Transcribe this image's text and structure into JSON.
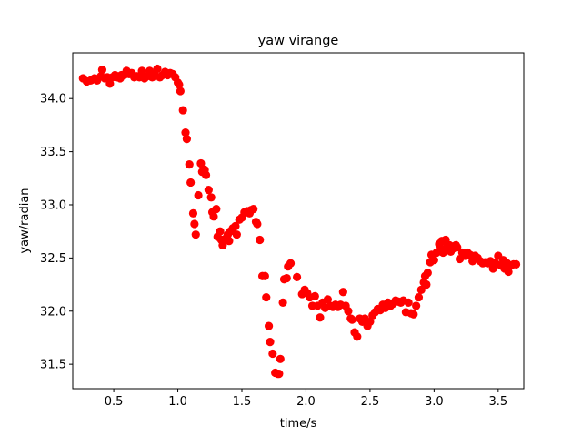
{
  "chart_data": {
    "type": "scatter",
    "title": "yaw virange",
    "xlabel": "time/s",
    "ylabel": "yaw/radian",
    "xlim": [
      0.18,
      3.7
    ],
    "ylim": [
      31.27,
      34.43
    ],
    "xticks": [
      0.5,
      1.0,
      1.5,
      2.0,
      2.5,
      3.0,
      3.5
    ],
    "xtick_labels": [
      "0.5",
      "1.0",
      "1.5",
      "2.0",
      "2.5",
      "3.0",
      "3.5"
    ],
    "yticks": [
      31.5,
      32.0,
      32.5,
      33.0,
      33.5,
      34.0
    ],
    "ytick_labels": [
      "31.5",
      "32.0",
      "32.5",
      "33.0",
      "33.5",
      "34.0"
    ],
    "grid": false,
    "marker_color": "#ff0000",
    "series": [
      {
        "points": [
          [
            0.26,
            34.19
          ],
          [
            0.29,
            34.16
          ],
          [
            0.32,
            34.17
          ],
          [
            0.35,
            34.19
          ],
          [
            0.37,
            34.17
          ],
          [
            0.4,
            34.21
          ],
          [
            0.41,
            34.27
          ],
          [
            0.43,
            34.19
          ],
          [
            0.45,
            34.2
          ],
          [
            0.47,
            34.14
          ],
          [
            0.49,
            34.2
          ],
          [
            0.51,
            34.22
          ],
          [
            0.53,
            34.2
          ],
          [
            0.55,
            34.19
          ],
          [
            0.56,
            34.22
          ],
          [
            0.58,
            34.22
          ],
          [
            0.6,
            34.26
          ],
          [
            0.62,
            34.23
          ],
          [
            0.64,
            34.24
          ],
          [
            0.66,
            34.2
          ],
          [
            0.68,
            34.21
          ],
          [
            0.7,
            34.2
          ],
          [
            0.72,
            34.26
          ],
          [
            0.74,
            34.19
          ],
          [
            0.76,
            34.21
          ],
          [
            0.78,
            34.26
          ],
          [
            0.8,
            34.2
          ],
          [
            0.82,
            34.23
          ],
          [
            0.84,
            34.28
          ],
          [
            0.86,
            34.2
          ],
          [
            0.88,
            34.22
          ],
          [
            0.9,
            34.25
          ],
          [
            0.92,
            34.22
          ],
          [
            0.94,
            34.24
          ],
          [
            0.96,
            34.23
          ],
          [
            0.98,
            34.2
          ],
          [
            1.0,
            34.15
          ],
          [
            1.01,
            34.13
          ],
          [
            1.02,
            34.07
          ],
          [
            1.04,
            33.89
          ],
          [
            1.06,
            33.68
          ],
          [
            1.07,
            33.62
          ],
          [
            1.09,
            33.38
          ],
          [
            1.1,
            33.21
          ],
          [
            1.12,
            32.92
          ],
          [
            1.13,
            32.82
          ],
          [
            1.14,
            32.72
          ],
          [
            1.16,
            33.09
          ],
          [
            1.18,
            33.39
          ],
          [
            1.19,
            33.31
          ],
          [
            1.21,
            33.33
          ],
          [
            1.22,
            33.28
          ],
          [
            1.24,
            33.14
          ],
          [
            1.26,
            33.07
          ],
          [
            1.27,
            32.93
          ],
          [
            1.28,
            32.89
          ],
          [
            1.3,
            32.96
          ],
          [
            1.31,
            32.7
          ],
          [
            1.33,
            32.75
          ],
          [
            1.34,
            32.67
          ],
          [
            1.35,
            32.62
          ],
          [
            1.37,
            32.68
          ],
          [
            1.39,
            32.72
          ],
          [
            1.4,
            32.66
          ],
          [
            1.41,
            32.75
          ],
          [
            1.43,
            32.78
          ],
          [
            1.45,
            32.8
          ],
          [
            1.46,
            32.72
          ],
          [
            1.48,
            32.86
          ],
          [
            1.5,
            32.88
          ],
          [
            1.52,
            32.93
          ],
          [
            1.54,
            32.94
          ],
          [
            1.56,
            32.92
          ],
          [
            1.57,
            32.95
          ],
          [
            1.59,
            32.96
          ],
          [
            1.61,
            32.84
          ],
          [
            1.62,
            32.82
          ],
          [
            1.64,
            32.67
          ],
          [
            1.66,
            32.33
          ],
          [
            1.68,
            32.33
          ],
          [
            1.69,
            32.13
          ],
          [
            1.71,
            31.86
          ],
          [
            1.72,
            31.71
          ],
          [
            1.74,
            31.6
          ],
          [
            1.76,
            31.42
          ],
          [
            1.78,
            31.41
          ],
          [
            1.79,
            31.41
          ],
          [
            1.8,
            31.55
          ],
          [
            1.82,
            32.08
          ],
          [
            1.83,
            32.3
          ],
          [
            1.85,
            32.31
          ],
          [
            1.86,
            32.42
          ],
          [
            1.88,
            32.45
          ],
          [
            1.93,
            32.32
          ],
          [
            1.97,
            32.16
          ],
          [
            1.99,
            32.2
          ],
          [
            2.01,
            32.17
          ],
          [
            2.03,
            32.13
          ],
          [
            2.05,
            32.05
          ],
          [
            2.07,
            32.14
          ],
          [
            2.09,
            32.05
          ],
          [
            2.11,
            31.94
          ],
          [
            2.13,
            32.08
          ],
          [
            2.15,
            32.03
          ],
          [
            2.17,
            32.11
          ],
          [
            2.19,
            32.05
          ],
          [
            2.21,
            32.04
          ],
          [
            2.23,
            32.06
          ],
          [
            2.25,
            32.04
          ],
          [
            2.27,
            32.06
          ],
          [
            2.29,
            32.18
          ],
          [
            2.31,
            32.05
          ],
          [
            2.33,
            32.0
          ],
          [
            2.35,
            31.93
          ],
          [
            2.36,
            31.92
          ],
          [
            2.38,
            31.8
          ],
          [
            2.4,
            31.76
          ],
          [
            2.42,
            31.93
          ],
          [
            2.44,
            31.9
          ],
          [
            2.46,
            31.93
          ],
          [
            2.48,
            31.86
          ],
          [
            2.5,
            31.9
          ],
          [
            2.52,
            31.96
          ],
          [
            2.54,
            31.99
          ],
          [
            2.56,
            32.02
          ],
          [
            2.58,
            32.01
          ],
          [
            2.6,
            32.06
          ],
          [
            2.62,
            32.03
          ],
          [
            2.64,
            32.08
          ],
          [
            2.66,
            32.05
          ],
          [
            2.68,
            32.07
          ],
          [
            2.7,
            32.1
          ],
          [
            2.72,
            32.09
          ],
          [
            2.74,
            32.08
          ],
          [
            2.76,
            32.1
          ],
          [
            2.78,
            31.99
          ],
          [
            2.8,
            32.08
          ],
          [
            2.82,
            31.98
          ],
          [
            2.84,
            31.97
          ],
          [
            2.86,
            32.05
          ],
          [
            2.88,
            32.13
          ],
          [
            2.9,
            32.2
          ],
          [
            2.92,
            32.27
          ],
          [
            2.93,
            32.33
          ],
          [
            2.94,
            32.25
          ],
          [
            2.95,
            32.36
          ],
          [
            2.97,
            32.46
          ],
          [
            2.98,
            32.53
          ],
          [
            3.0,
            32.48
          ],
          [
            3.02,
            32.55
          ],
          [
            3.04,
            32.63
          ],
          [
            3.05,
            32.58
          ],
          [
            3.06,
            32.66
          ],
          [
            3.07,
            32.55
          ],
          [
            3.09,
            32.67
          ],
          [
            3.1,
            32.61
          ],
          [
            3.12,
            32.62
          ],
          [
            3.13,
            32.56
          ],
          [
            3.15,
            32.59
          ],
          [
            3.17,
            32.62
          ],
          [
            3.18,
            32.6
          ],
          [
            3.2,
            32.49
          ],
          [
            3.22,
            32.55
          ],
          [
            3.24,
            32.52
          ],
          [
            3.26,
            32.55
          ],
          [
            3.28,
            32.53
          ],
          [
            3.3,
            32.47
          ],
          [
            3.32,
            32.52
          ],
          [
            3.34,
            32.5
          ],
          [
            3.36,
            32.47
          ],
          [
            3.38,
            32.45
          ],
          [
            3.4,
            32.46
          ],
          [
            3.42,
            32.45
          ],
          [
            3.44,
            32.47
          ],
          [
            3.46,
            32.4
          ],
          [
            3.48,
            32.45
          ],
          [
            3.5,
            32.52
          ],
          [
            3.52,
            32.43
          ],
          [
            3.54,
            32.48
          ],
          [
            3.55,
            32.4
          ],
          [
            3.57,
            32.45
          ],
          [
            3.58,
            32.37
          ],
          [
            3.6,
            32.43
          ],
          [
            3.62,
            32.44
          ],
          [
            3.64,
            32.44
          ]
        ]
      }
    ]
  }
}
